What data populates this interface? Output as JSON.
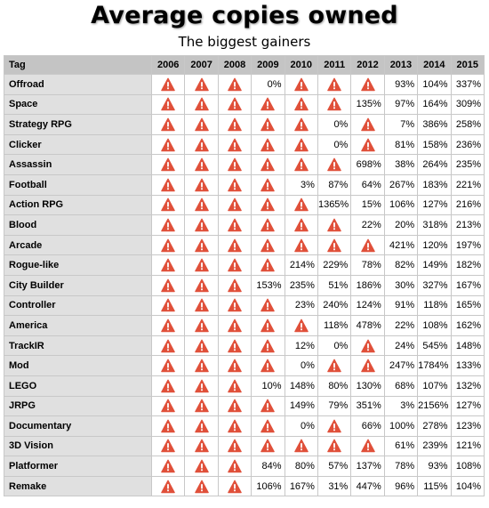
{
  "header": {
    "title": "Average copies owned",
    "subtitle": "The biggest gainers"
  },
  "colors": {
    "warning": "#e0503a",
    "header_bg": "#c4c4c4",
    "tag_bg": "#e0e0e0"
  },
  "icons": {
    "missing_value": "warning-triangle-icon"
  },
  "chart_data": {
    "type": "table",
    "title": "Average copies owned",
    "subtitle": "The biggest gainers",
    "columns": [
      "Tag",
      "2006",
      "2007",
      "2008",
      "2009",
      "2010",
      "2011",
      "2012",
      "2013",
      "2014",
      "2015"
    ],
    "rows": [
      {
        "tag": "Offroad",
        "values": [
          null,
          null,
          null,
          "0%",
          null,
          null,
          null,
          "93%",
          "104%",
          "337%"
        ]
      },
      {
        "tag": "Space",
        "values": [
          null,
          null,
          null,
          null,
          null,
          null,
          "135%",
          "97%",
          "164%",
          "309%"
        ]
      },
      {
        "tag": "Strategy RPG",
        "values": [
          null,
          null,
          null,
          null,
          null,
          "0%",
          null,
          "7%",
          "386%",
          "258%"
        ]
      },
      {
        "tag": "Clicker",
        "values": [
          null,
          null,
          null,
          null,
          null,
          "0%",
          null,
          "81%",
          "158%",
          "236%"
        ]
      },
      {
        "tag": "Assassin",
        "values": [
          null,
          null,
          null,
          null,
          null,
          null,
          "698%",
          "38%",
          "264%",
          "235%"
        ]
      },
      {
        "tag": "Football",
        "values": [
          null,
          null,
          null,
          null,
          "3%",
          "87%",
          "64%",
          "267%",
          "183%",
          "221%"
        ]
      },
      {
        "tag": "Action RPG",
        "values": [
          null,
          null,
          null,
          null,
          null,
          "1365%",
          "15%",
          "106%",
          "127%",
          "216%"
        ]
      },
      {
        "tag": "Blood",
        "values": [
          null,
          null,
          null,
          null,
          null,
          null,
          "22%",
          "20%",
          "318%",
          "213%"
        ]
      },
      {
        "tag": "Arcade",
        "values": [
          null,
          null,
          null,
          null,
          null,
          null,
          null,
          "421%",
          "120%",
          "197%"
        ]
      },
      {
        "tag": "Rogue-like",
        "values": [
          null,
          null,
          null,
          null,
          "214%",
          "229%",
          "78%",
          "82%",
          "149%",
          "182%"
        ]
      },
      {
        "tag": "City Builder",
        "values": [
          null,
          null,
          null,
          "153%",
          "235%",
          "51%",
          "186%",
          "30%",
          "327%",
          "167%"
        ]
      },
      {
        "tag": "Controller",
        "values": [
          null,
          null,
          null,
          null,
          "23%",
          "240%",
          "124%",
          "91%",
          "118%",
          "165%"
        ]
      },
      {
        "tag": "America",
        "values": [
          null,
          null,
          null,
          null,
          null,
          "118%",
          "478%",
          "22%",
          "108%",
          "162%"
        ]
      },
      {
        "tag": "TrackIR",
        "values": [
          null,
          null,
          null,
          null,
          "12%",
          "0%",
          null,
          "24%",
          "545%",
          "148%"
        ]
      },
      {
        "tag": "Mod",
        "values": [
          null,
          null,
          null,
          null,
          "0%",
          null,
          null,
          "247%",
          "1784%",
          "133%"
        ]
      },
      {
        "tag": "LEGO",
        "values": [
          null,
          null,
          null,
          "10%",
          "148%",
          "80%",
          "130%",
          "68%",
          "107%",
          "132%"
        ]
      },
      {
        "tag": "JRPG",
        "values": [
          null,
          null,
          null,
          null,
          "149%",
          "79%",
          "351%",
          "3%",
          "2156%",
          "127%"
        ]
      },
      {
        "tag": "Documentary",
        "values": [
          null,
          null,
          null,
          null,
          "0%",
          null,
          "66%",
          "100%",
          "278%",
          "123%"
        ]
      },
      {
        "tag": "3D Vision",
        "values": [
          null,
          null,
          null,
          null,
          null,
          null,
          null,
          "61%",
          "239%",
          "121%"
        ]
      },
      {
        "tag": "Platformer",
        "values": [
          null,
          null,
          null,
          "84%",
          "80%",
          "57%",
          "137%",
          "78%",
          "93%",
          "108%"
        ]
      },
      {
        "tag": "Remake",
        "values": [
          null,
          null,
          null,
          "106%",
          "167%",
          "31%",
          "447%",
          "96%",
          "115%",
          "104%"
        ]
      }
    ]
  }
}
